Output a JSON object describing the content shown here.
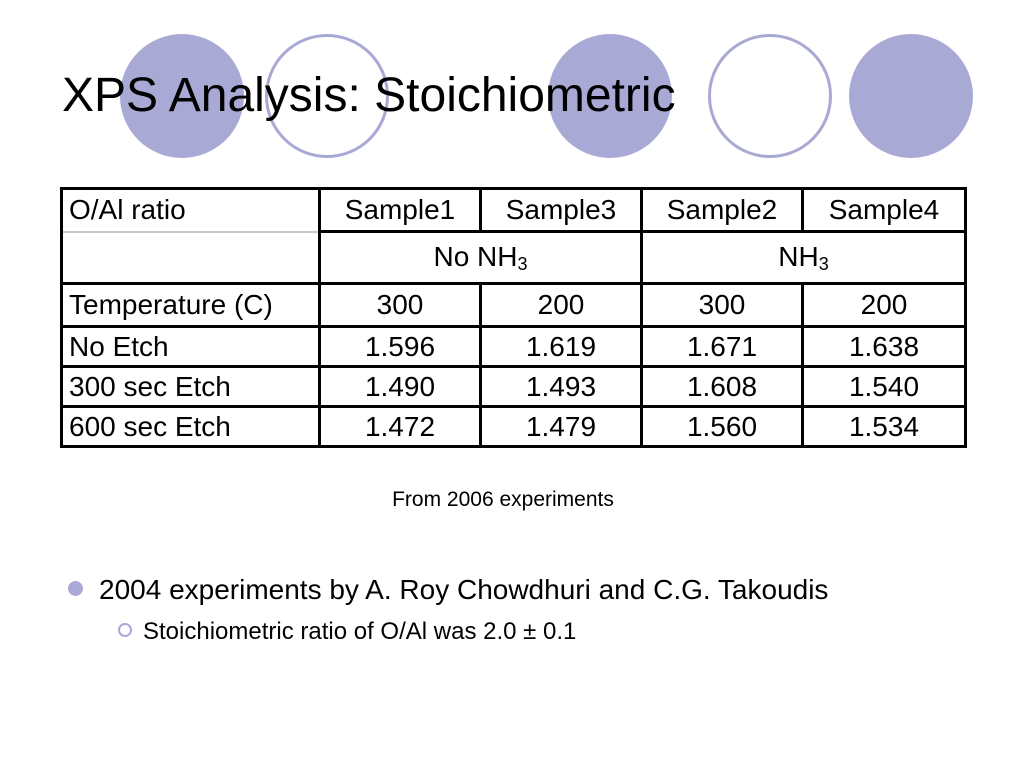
{
  "slide": {
    "title": "XPS Analysis: Stoichiometric",
    "accent_color": "#a9a9d6",
    "decoration": [
      "filled-circle",
      "ring-circle",
      "filled-circle",
      "ring-circle",
      "filled-circle"
    ]
  },
  "table": {
    "header": [
      "O/Al ratio",
      "Sample1",
      "Sample3",
      "Sample2",
      "Sample4"
    ],
    "groups": [
      {
        "label": "No NH",
        "sub": "3"
      },
      {
        "label": "NH",
        "sub": "3"
      }
    ],
    "temperature": {
      "label": "Temperature (C)",
      "values": [
        "300",
        "200",
        "300",
        "200"
      ]
    },
    "rows": [
      {
        "label": "No Etch",
        "values": [
          "1.596",
          "1.619",
          "1.671",
          "1.638"
        ]
      },
      {
        "label": "300 sec Etch",
        "values": [
          "1.490",
          "1.493",
          "1.608",
          "1.540"
        ]
      },
      {
        "label": "600 sec Etch",
        "values": [
          "1.472",
          "1.479",
          "1.560",
          "1.534"
        ]
      }
    ]
  },
  "caption": "From 2006 experiments",
  "bullets": [
    {
      "text": "2004 experiments by A. Roy Chowdhuri and C.G. Takoudis",
      "sub": [
        "Stoichiometric ratio of O/Al was 2.0 ± 0.1"
      ]
    }
  ]
}
